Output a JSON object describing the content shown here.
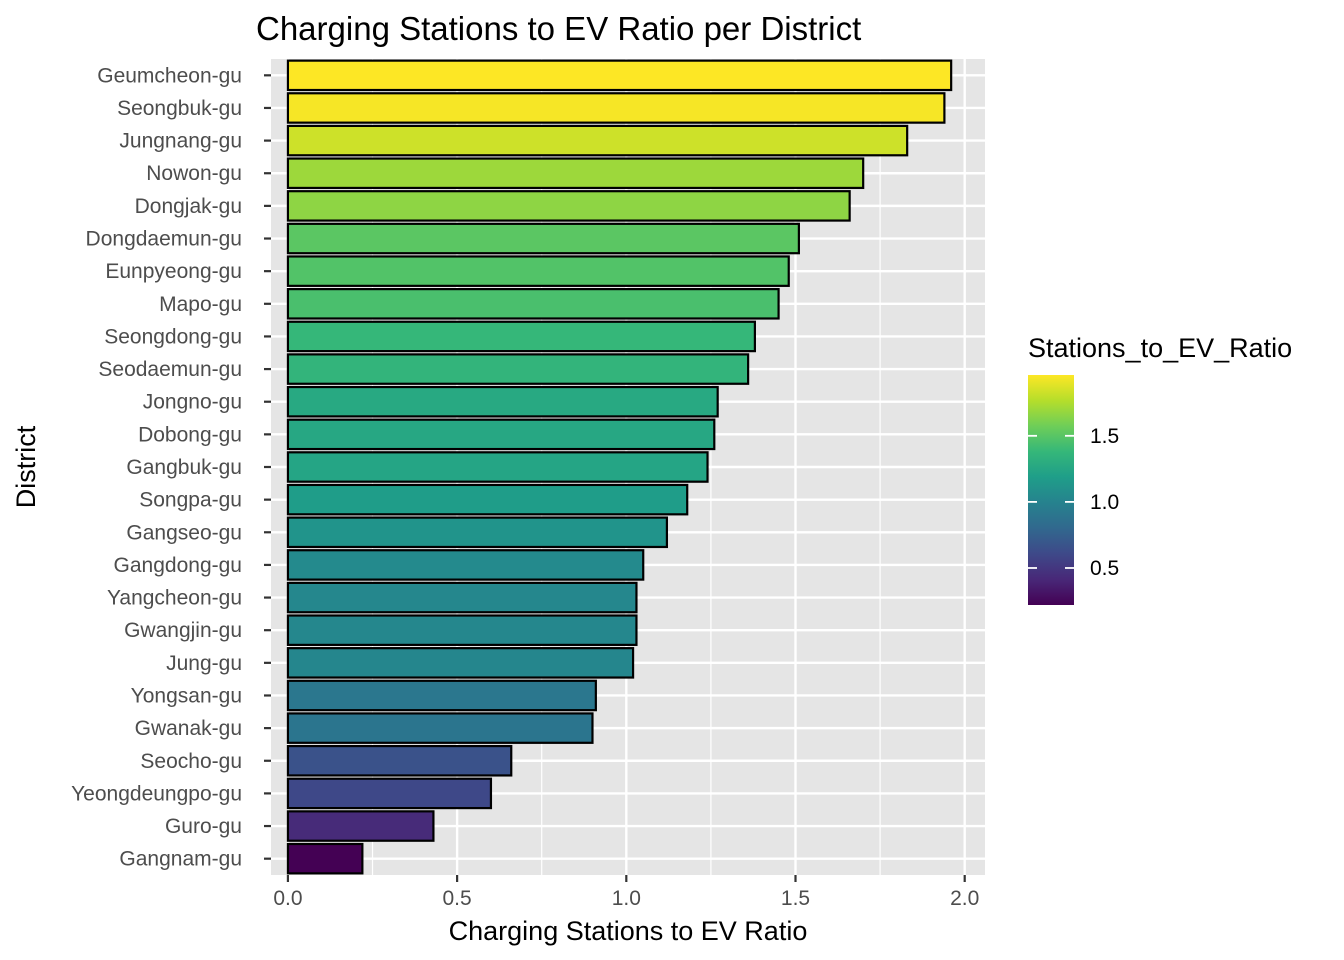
{
  "chart_data": {
    "type": "bar",
    "orientation": "horizontal",
    "title": "Charging Stations to EV Ratio per District",
    "xlabel": "Charging Stations to EV Ratio",
    "ylabel": "District",
    "xlim": [
      -0.05,
      2.06
    ],
    "x_ticks": [
      0.0,
      0.5,
      1.0,
      1.5,
      2.0
    ],
    "x_tick_labels": [
      "0.0",
      "0.5",
      "1.0",
      "1.5",
      "2.0"
    ],
    "grid": true,
    "categories": [
      "Geumcheon-gu",
      "Seongbuk-gu",
      "Jungnang-gu",
      "Nowon-gu",
      "Dongjak-gu",
      "Dongdaemun-gu",
      "Eunpyeong-gu",
      "Mapo-gu",
      "Seongdong-gu",
      "Seodaemun-gu",
      "Jongno-gu",
      "Dobong-gu",
      "Gangbuk-gu",
      "Songpa-gu",
      "Gangseo-gu",
      "Gangdong-gu",
      "Yangcheon-gu",
      "Gwangjin-gu",
      "Jung-gu",
      "Yongsan-gu",
      "Gwanak-gu",
      "Seocho-gu",
      "Yeongdeungpo-gu",
      "Guro-gu",
      "Gangnam-gu"
    ],
    "values": [
      1.96,
      1.94,
      1.83,
      1.7,
      1.66,
      1.51,
      1.48,
      1.45,
      1.38,
      1.36,
      1.27,
      1.26,
      1.24,
      1.18,
      1.12,
      1.05,
      1.03,
      1.03,
      1.02,
      0.91,
      0.9,
      0.66,
      0.6,
      0.43,
      0.22
    ],
    "legend": {
      "title": "Stations_to_EV_Ratio",
      "position": "right",
      "range": [
        0.22,
        1.96
      ],
      "ticks": [
        0.5,
        1.0,
        1.5
      ],
      "tick_labels": [
        "0.5",
        "1.0",
        "1.5"
      ]
    },
    "colors": {
      "panel_background": "#e5e5e5",
      "grid": "#ffffff",
      "bar_outline": "#000000",
      "palette": "viridis"
    }
  }
}
